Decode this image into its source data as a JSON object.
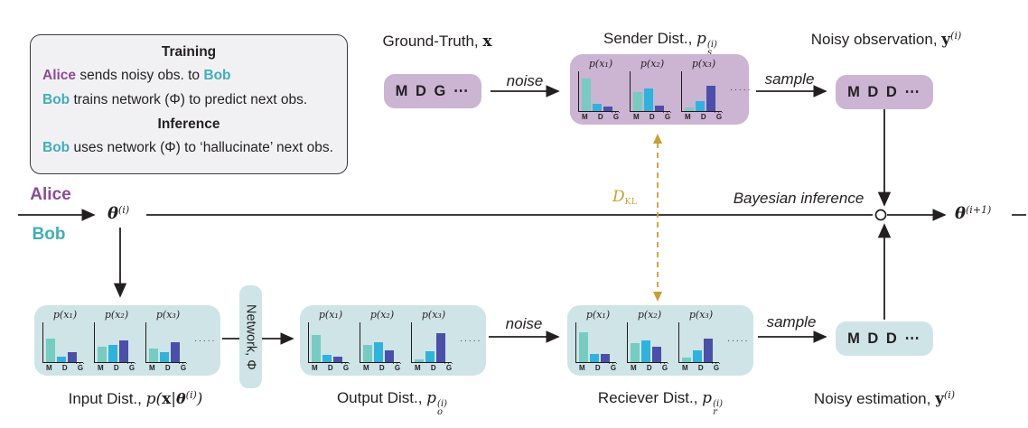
{
  "colors": {
    "ink": "#231f20",
    "alice": "#8d4a96",
    "bob": "#3fafb8",
    "purple_box": "#ccb4d3",
    "teal_box": "#cfe4e6",
    "bar_m": "#76ccc1",
    "bar_d": "#2eb3de",
    "bar_g": "#4b4fa9",
    "gold": "#c8a02c",
    "info_bg": "#f1f1f4"
  },
  "legend": {
    "training_heading": "Training",
    "train1": {
      "alice": "Alice",
      "rest": " sends noisy obs. to ",
      "bob": "Bob"
    },
    "train2": {
      "bob": "Bob",
      "rest": " trains network (Φ) to predict next obs."
    },
    "inference_heading": "Inference",
    "inf1": {
      "bob": "Bob",
      "rest": " uses network (Φ) to ‘hallucinate’ next obs."
    }
  },
  "actors": {
    "alice": "Alice",
    "bob": "Bob"
  },
  "nodes": {
    "theta_i": {
      "base": "θ",
      "sup": "(i)"
    },
    "theta_i1": {
      "base": "θ",
      "sup": "(i+1)"
    }
  },
  "middle": {
    "dkl": {
      "base": "D",
      "sub": "KL"
    },
    "bayesian_label": "Bayesian inference"
  },
  "top_flow": {
    "ground_truth": {
      "label_text": "Ground-Truth, ",
      "x": "x",
      "tokens": "M D G ⋯"
    },
    "noise_label": "noise",
    "sample_label": "sample",
    "sender": {
      "label_text": "Sender Dist., ",
      "p": "p",
      "sub": "s",
      "sup": "(i)",
      "xticks": [
        "M",
        "D",
        "G"
      ],
      "tail": "···",
      "dots": "·····",
      "charts": [
        {
          "title": "p(x₁)",
          "values": [
            0.85,
            0.18,
            0.13
          ]
        },
        {
          "title": "p(x₂)",
          "values": [
            0.5,
            0.6,
            0.15
          ]
        },
        {
          "title": "p(x₃)",
          "values": [
            0.1,
            0.27,
            0.66
          ]
        }
      ]
    },
    "noisy_observation": {
      "label_text": "Noisy observation, ",
      "y": "y",
      "sup": "(i)",
      "tokens": "M D D ⋯"
    }
  },
  "bottom_flow": {
    "input": {
      "label_text": "Input Dist., ",
      "m1": "p(",
      "x": "x",
      "bar": "|",
      "theta": "θ",
      "sup": "(i)",
      "close": ")",
      "xticks": [
        "M",
        "D",
        "G"
      ],
      "tail": "···",
      "dots": "·····",
      "charts": [
        {
          "title": "p(x₁)",
          "values": [
            0.62,
            0.14,
            0.25
          ]
        },
        {
          "title": "p(x₂)",
          "values": [
            0.4,
            0.46,
            0.58
          ]
        },
        {
          "title": "p(x₃)",
          "values": [
            0.36,
            0.25,
            0.52
          ]
        }
      ]
    },
    "network": {
      "label": "Network, Φ"
    },
    "output": {
      "label_text": "Output Dist., ",
      "p": "p",
      "sub": "o",
      "sup": "(i)",
      "xticks": [
        "M",
        "D",
        "G"
      ],
      "tail": "···",
      "dots": "·····",
      "charts": [
        {
          "title": "p(x₁)",
          "values": [
            0.72,
            0.18,
            0.15
          ]
        },
        {
          "title": "p(x₂)",
          "values": [
            0.46,
            0.52,
            0.3
          ]
        },
        {
          "title": "p(x₃)",
          "values": [
            0.08,
            0.28,
            0.76
          ]
        }
      ]
    },
    "noise_label": "noise",
    "sample_label": "sample",
    "receiver": {
      "label_text": "Reciever Dist., ",
      "p": "p",
      "sub": "r",
      "sup": "(i)",
      "xticks": [
        "M",
        "D",
        "G"
      ],
      "tail": "···",
      "dots": "·····",
      "charts": [
        {
          "title": "p(x₁)",
          "values": [
            0.78,
            0.22,
            0.22
          ]
        },
        {
          "title": "p(x₂)",
          "values": [
            0.5,
            0.56,
            0.4
          ]
        },
        {
          "title": "p(x₃)",
          "values": [
            0.12,
            0.3,
            0.62
          ]
        }
      ]
    },
    "noisy_estimation": {
      "label_text": "Noisy estimation, ",
      "y": "y",
      "sup": "(i)",
      "tokens": "M D D ⋯"
    }
  }
}
